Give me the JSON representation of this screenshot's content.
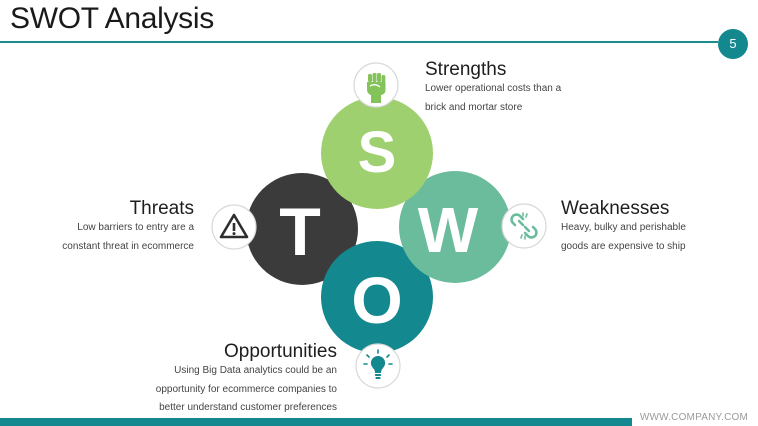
{
  "slide": {
    "title": "SWOT Analysis",
    "page_number": "5",
    "footer_url": "WWW.COMPANY.COM"
  },
  "swot": {
    "strengths": {
      "letter": "S",
      "heading": "Strengths",
      "desc_line1": "Lower operational costs than a",
      "desc_line2": "brick and mortar store",
      "color": "#9fd06f",
      "icon": "raised-fist-icon"
    },
    "weaknesses": {
      "letter": "W",
      "heading": "Weaknesses",
      "desc_line1": "Heavy, bulky and perishable",
      "desc_line2": "goods are expensive to ship",
      "color": "#6bbc9c",
      "icon": "broken-link-icon"
    },
    "opportunities": {
      "letter": "O",
      "heading": "Opportunities",
      "desc_line1": "Using Big Data analytics could be an",
      "desc_line2": "opportunity for ecommerce companies to",
      "desc_line3": "better understand customer preferences",
      "color": "#13888f",
      "icon": "lightbulb-icon"
    },
    "threats": {
      "letter": "T",
      "heading": "Threats",
      "desc_line1": "Low barriers to entry  are a",
      "desc_line2": "constant threat in ecommerce",
      "color": "#3b3b3b",
      "icon": "warning-icon"
    }
  }
}
